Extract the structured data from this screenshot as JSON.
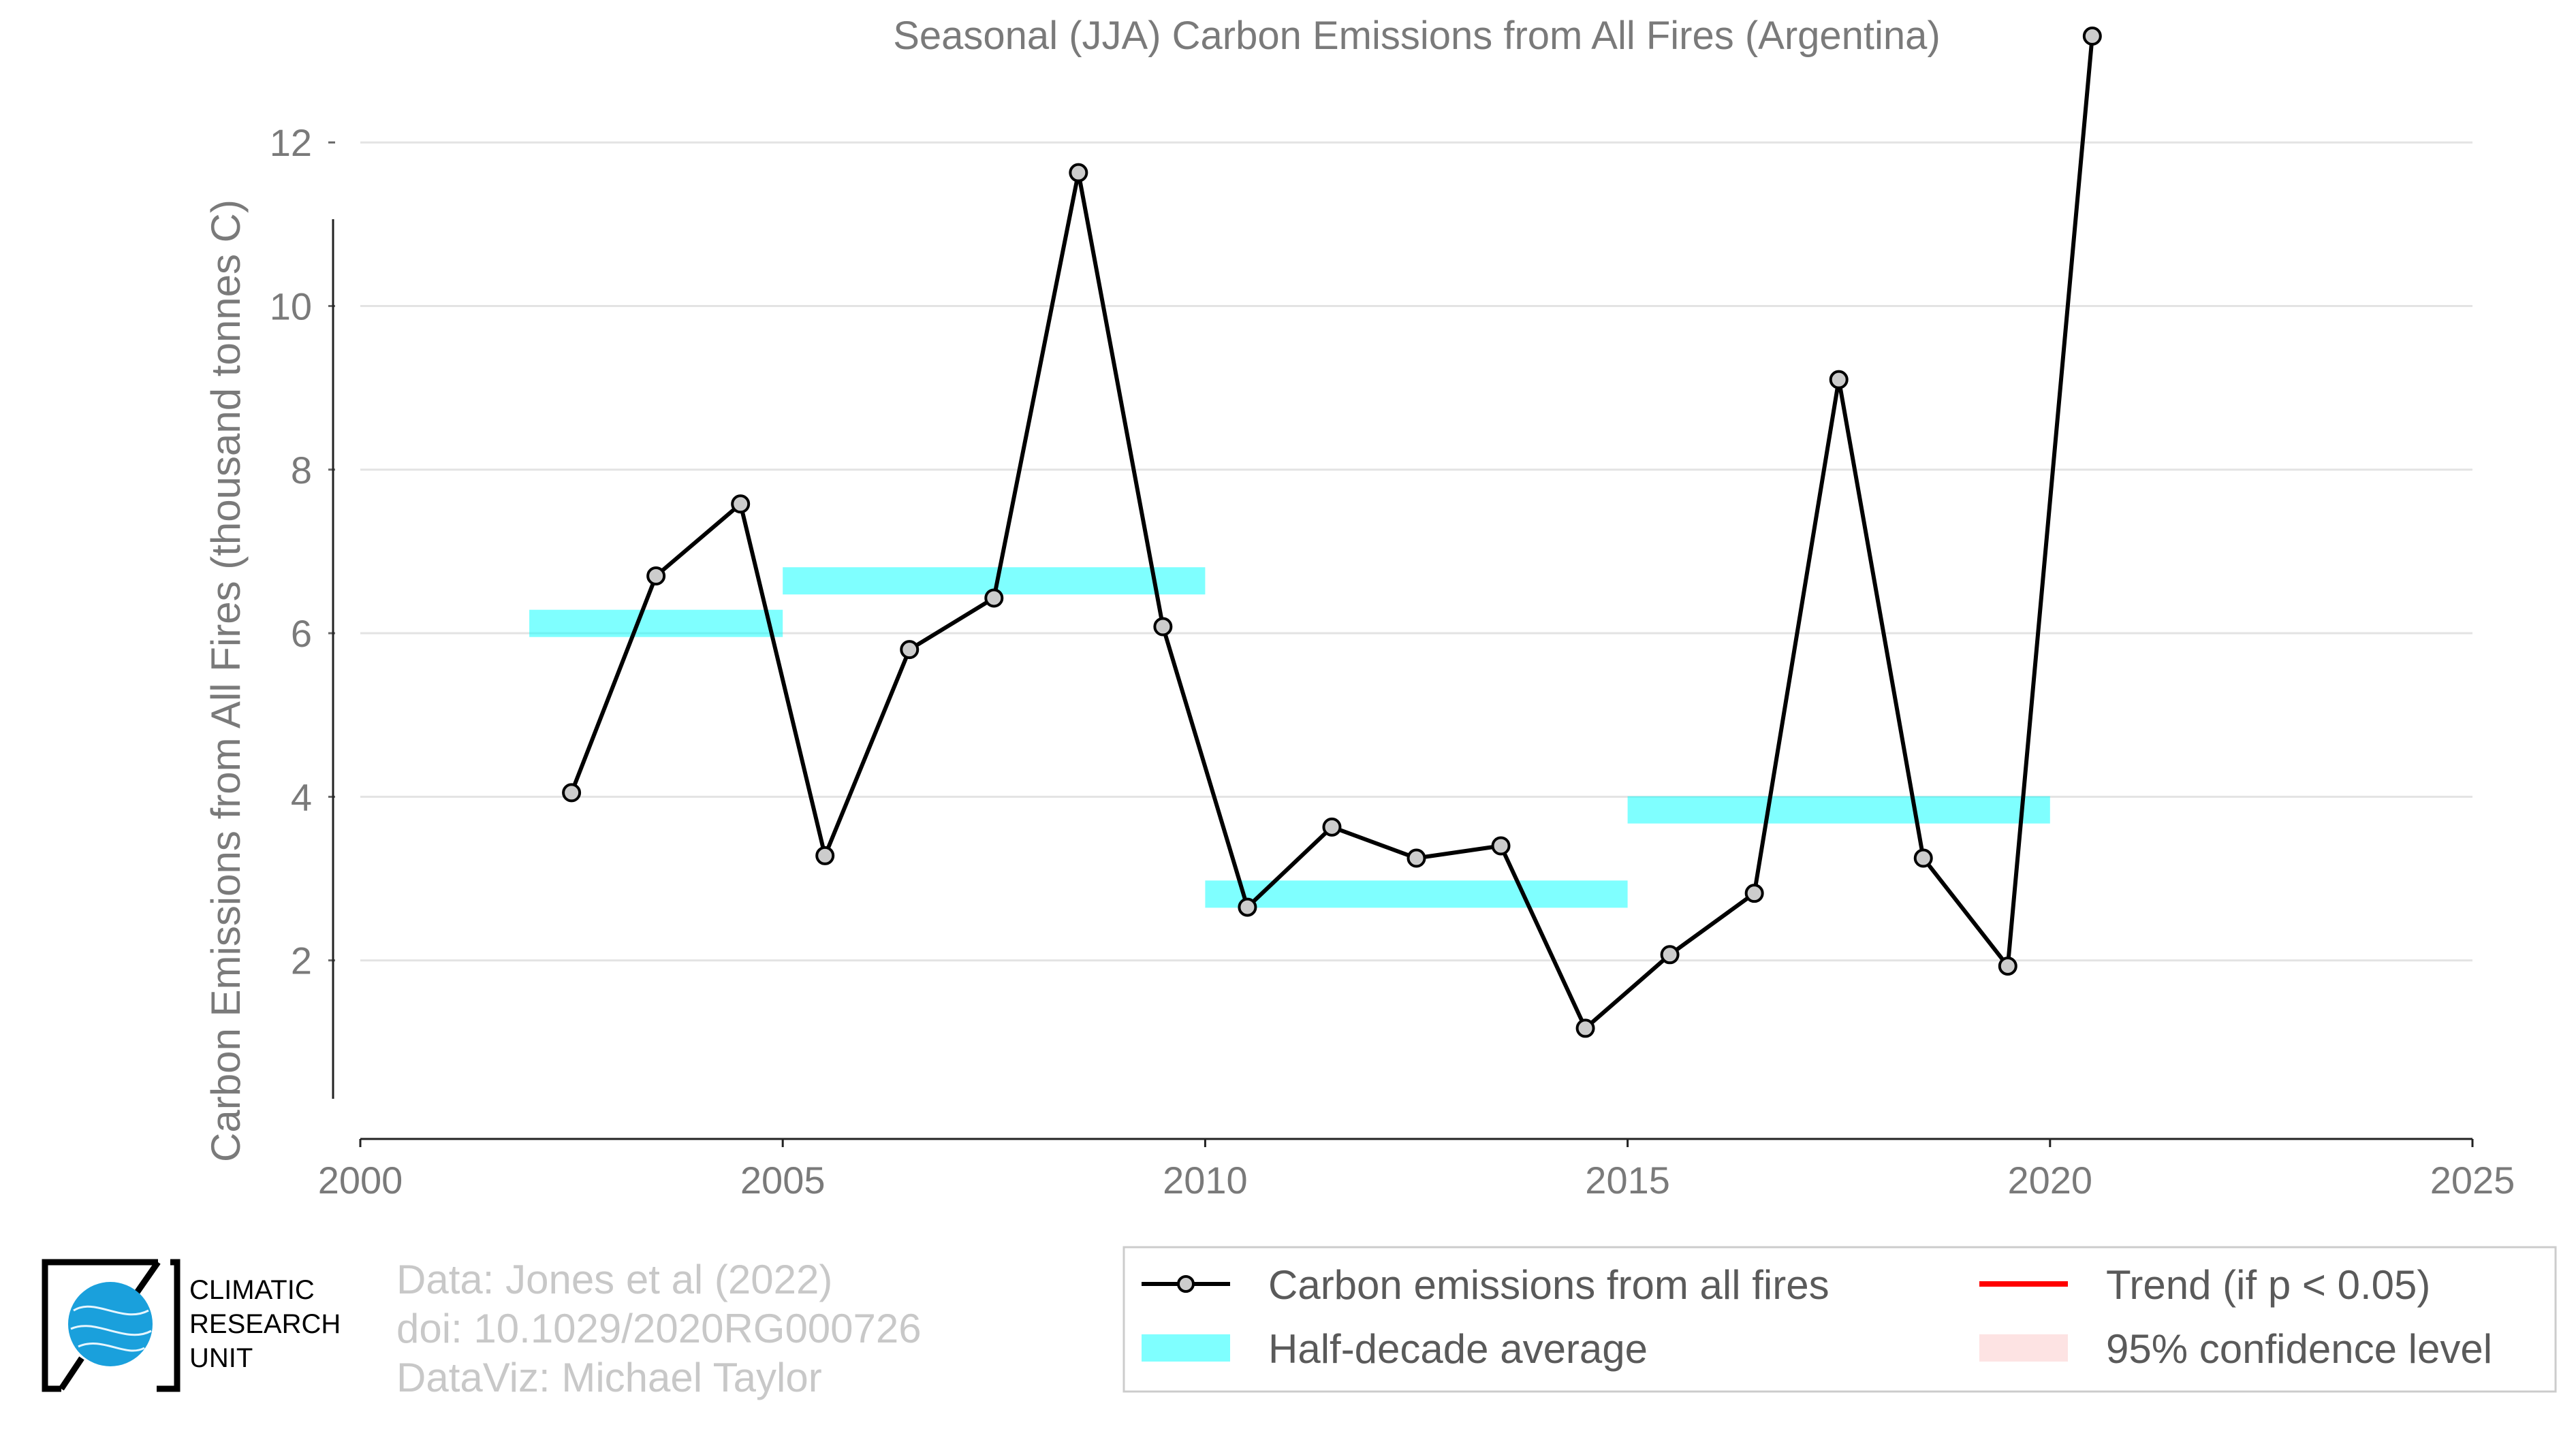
{
  "chart_data": {
    "type": "line",
    "title": "Seasonal (JJA) Carbon Emissions from All Fires (Argentina)",
    "xlabel": "",
    "ylabel": "Carbon Emissions from All Fires (thousand tonnes C)",
    "xlim": [
      2000,
      2025
    ],
    "ylim": [
      0,
      13.5
    ],
    "xticks": [
      2000,
      2005,
      2010,
      2015,
      2020,
      2025
    ],
    "yticks": [
      2,
      4,
      6,
      8,
      10,
      12
    ],
    "grid": "horizontal",
    "legend_position": "bottom-right",
    "series": [
      {
        "name": "Carbon emissions from all fires",
        "color": "#000000",
        "marker": "circle",
        "marker_fill": "#cccccc",
        "x": [
          2002.5,
          2003.5,
          2004.5,
          2005.5,
          2006.5,
          2007.5,
          2008.5,
          2009.5,
          2010.5,
          2011.5,
          2012.5,
          2013.5,
          2014.5,
          2015.5,
          2016.5,
          2017.5,
          2018.5,
          2019.5,
          2020.5
        ],
        "y": [
          4.05,
          6.7,
          7.58,
          3.28,
          5.8,
          6.43,
          11.63,
          6.08,
          2.65,
          3.63,
          3.25,
          3.4,
          1.17,
          2.07,
          2.82,
          9.1,
          3.25,
          1.93,
          13.3
        ]
      },
      {
        "name": "Half-decade average",
        "color": "#00ffff",
        "type": "segments",
        "segments": [
          {
            "x0": 2002,
            "x1": 2005,
            "y": 6.12
          },
          {
            "x0": 2005,
            "x1": 2010,
            "y": 6.64
          },
          {
            "x0": 2010,
            "x1": 2015,
            "y": 2.81
          },
          {
            "x0": 2015,
            "x1": 2020,
            "y": 3.84
          }
        ]
      }
    ],
    "legend": [
      {
        "label": "Carbon emissions from all fires",
        "kind": "line-marker",
        "color": "#000000"
      },
      {
        "label": "Trend (if p < 0.05)",
        "kind": "line",
        "color": "#ff0000"
      },
      {
        "label": "Half-decade average",
        "kind": "patch",
        "color": "#7fffff"
      },
      {
        "label": "95% confidence level",
        "kind": "patch",
        "color": "#fde3e3"
      }
    ]
  },
  "credits": {
    "line1": "Data: Jones et al (2022)",
    "line2": "doi: 10.1029/2020RG000726",
    "line3": "DataViz: Michael Taylor"
  },
  "logo": {
    "line1": "CLIMATIC",
    "line2": "RESEARCH",
    "line3": "UNIT"
  }
}
